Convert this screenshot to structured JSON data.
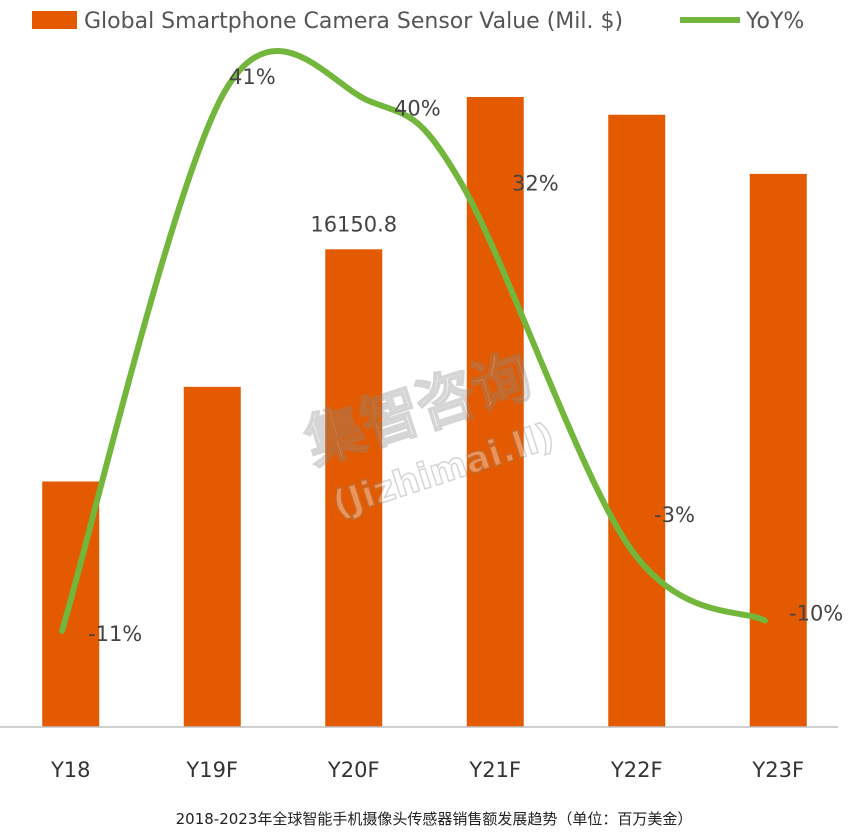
{
  "chart_data": {
    "type": "bar",
    "categories": [
      "Y18",
      "Y19F",
      "Y20F",
      "Y21F",
      "Y22F",
      "Y23F"
    ],
    "series": [
      {
        "name": "Global Smartphone Camera Sensor Value (Mil. $)",
        "kind": "bar",
        "values": [
          8300,
          11500,
          16150.8,
          21300,
          20700,
          18700
        ],
        "data_labels": [
          "",
          "",
          "16150.8",
          "",
          "",
          ""
        ]
      },
      {
        "name": "YoY%",
        "kind": "line",
        "values": [
          -11,
          41,
          40,
          32,
          -3,
          -10
        ],
        "data_labels": [
          "-11%",
          "41%",
          "40%",
          "32%",
          "-3%",
          "-10%"
        ]
      }
    ],
    "bar_color": "#E35A00",
    "line_color": "#72B63C",
    "legend_position": "top",
    "grid": false
  },
  "watermark": {
    "line1": "集智咨询",
    "line2": "(Jizhimai.ll)"
  },
  "caption": "2018-2023年全球智能手机摄像头传感器销售额发展趋势（单位：百万美金）"
}
